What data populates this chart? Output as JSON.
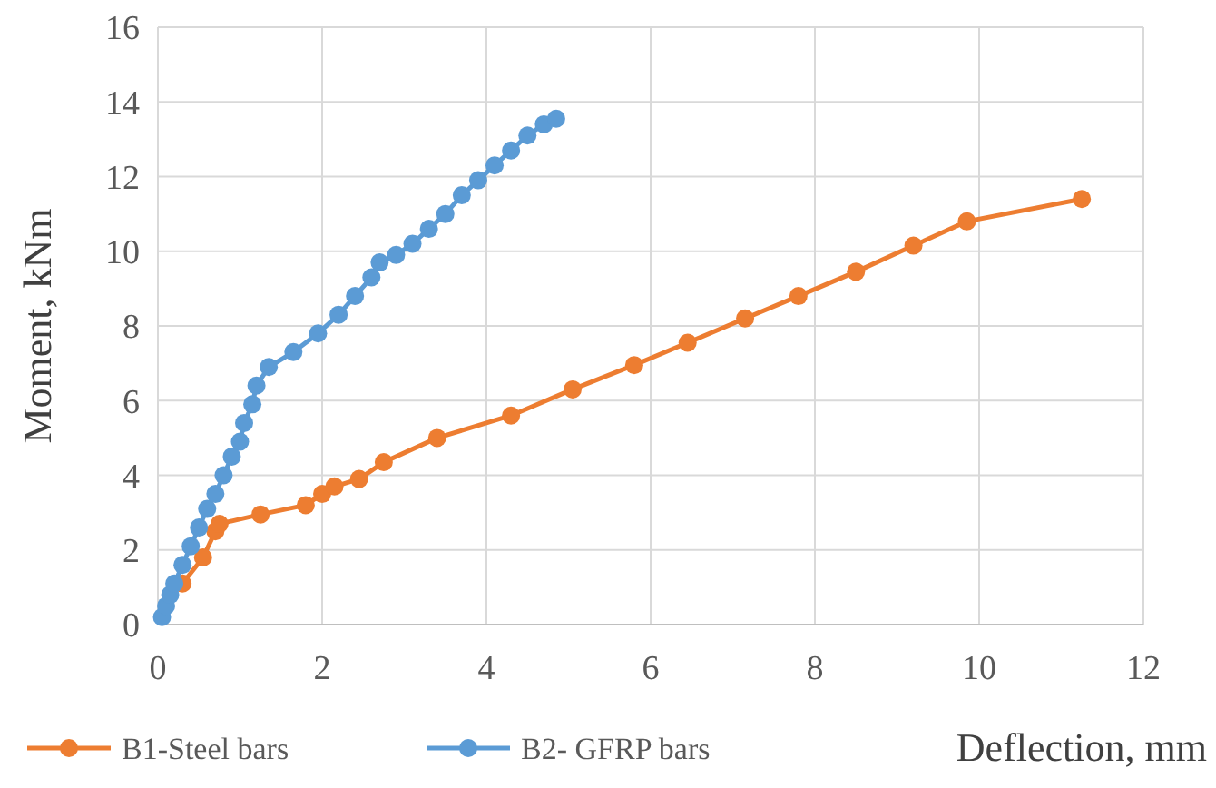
{
  "chart_data": {
    "type": "line",
    "xlabel": "Deflection, mm",
    "ylabel": "Moment, kNm",
    "xlim": [
      0,
      12
    ],
    "xticks": [
      0,
      2,
      4,
      6,
      8,
      10,
      12
    ],
    "ylim": [
      0,
      16
    ],
    "yticks": [
      0,
      2,
      4,
      6,
      8,
      10,
      12,
      14,
      16
    ],
    "grid": true,
    "legend": "bottom",
    "marker": "circle",
    "line_style": "solid",
    "series": [
      {
        "name": "B1-Steel bars",
        "color": "#ed7d31",
        "x": [
          0.3,
          0.55,
          0.7,
          0.75,
          1.25,
          1.8,
          2.0,
          2.15,
          2.45,
          2.75,
          3.4,
          4.3,
          5.05,
          5.8,
          6.45,
          7.15,
          7.8,
          8.5,
          9.2,
          9.85,
          11.25
        ],
        "values": [
          1.1,
          1.8,
          2.5,
          2.7,
          2.95,
          3.2,
          3.5,
          3.7,
          3.9,
          4.35,
          5.0,
          5.6,
          6.3,
          6.95,
          7.55,
          8.2,
          8.8,
          9.45,
          10.15,
          10.8,
          11.4
        ]
      },
      {
        "name": "B2- GFRP bars",
        "color": "#5b9bd5",
        "x": [
          0.05,
          0.1,
          0.15,
          0.2,
          0.3,
          0.4,
          0.5,
          0.6,
          0.7,
          0.8,
          0.9,
          1.0,
          1.05,
          1.15,
          1.2,
          1.35,
          1.65,
          1.95,
          2.2,
          2.4,
          2.6,
          2.7,
          2.9,
          3.1,
          3.3,
          3.5,
          3.7,
          3.9,
          4.1,
          4.3,
          4.5,
          4.7,
          4.85
        ],
        "values": [
          0.2,
          0.5,
          0.8,
          1.1,
          1.6,
          2.1,
          2.6,
          3.1,
          3.5,
          4.0,
          4.5,
          4.9,
          5.4,
          5.9,
          6.4,
          6.9,
          7.3,
          7.8,
          8.3,
          8.8,
          9.3,
          9.7,
          9.9,
          10.2,
          10.6,
          11.0,
          11.5,
          11.9,
          12.3,
          12.7,
          13.1,
          13.4,
          13.55
        ]
      }
    ]
  }
}
